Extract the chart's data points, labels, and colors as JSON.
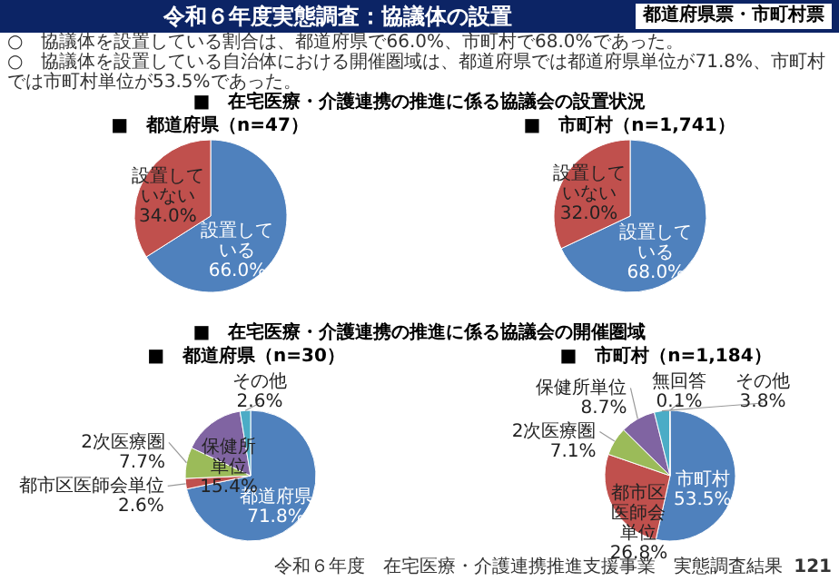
{
  "chart_data": [
    {
      "type": "other",
      "title": "令和６年度実態調査：協議体の設置",
      "annotations": [
        "都道府県票・市町村票",
        "○　協議体を設置している割合は、都道府県で66.0%、市町村で68.0%であった。",
        "○　協議体を設置している自治体における開催圏域は、都道府県では都道府県単位が71.8%、市町村では市町村単位が53.5%であった。",
        "令和６年度　在宅医療・介護連携推進支援事業　実態調査結果",
        "121"
      ]
    },
    {
      "type": "pie",
      "subtitle": "■　在宅医療・介護連携の推進に係る協議会の設置状況",
      "title": "■　都道府県（n=47）",
      "categories": [
        "設置している",
        "設置していない"
      ],
      "values": [
        66.0,
        34.0
      ],
      "value_labels": [
        "66.0%",
        "34.0%"
      ],
      "colors": [
        "#4f81bd",
        "#c0504d"
      ]
    },
    {
      "type": "pie",
      "title": "■　市町村（n=1,741）",
      "categories": [
        "設置している",
        "設置していない"
      ],
      "values": [
        68.0,
        32.0
      ],
      "value_labels": [
        "68.0%",
        "32.0%"
      ],
      "colors": [
        "#4f81bd",
        "#c0504d"
      ]
    },
    {
      "type": "pie",
      "subtitle": "■　在宅医療・介護連携の推進に係る協議会の開催圏域",
      "title": "■　都道府県（n=30）",
      "categories": [
        "都道府県",
        "都市区医師会単位",
        "2次医療圏",
        "保健所単位",
        "その他"
      ],
      "values": [
        71.8,
        2.6,
        7.7,
        15.4,
        2.6
      ],
      "value_labels": [
        "71.8%",
        "2.6%",
        "7.7%",
        "15.4%",
        "2.6%"
      ],
      "colors": [
        "#4f81bd",
        "#c0504d",
        "#9bbb59",
        "#8064a2",
        "#4bacc6"
      ]
    },
    {
      "type": "pie",
      "title": "■　市町村（n=1,184）",
      "categories": [
        "市町村",
        "都市区医師会単位",
        "2次医療圏",
        "保健所単位",
        "その他",
        "無回答"
      ],
      "values": [
        53.5,
        26.8,
        7.1,
        8.7,
        3.8,
        0.1
      ],
      "value_labels": [
        "53.5%",
        "26.8%",
        "7.1%",
        "8.7%",
        "3.8%",
        "0.1%"
      ],
      "colors": [
        "#4f81bd",
        "#c0504d",
        "#9bbb59",
        "#8064a2",
        "#4bacc6",
        "#f79646"
      ]
    }
  ]
}
